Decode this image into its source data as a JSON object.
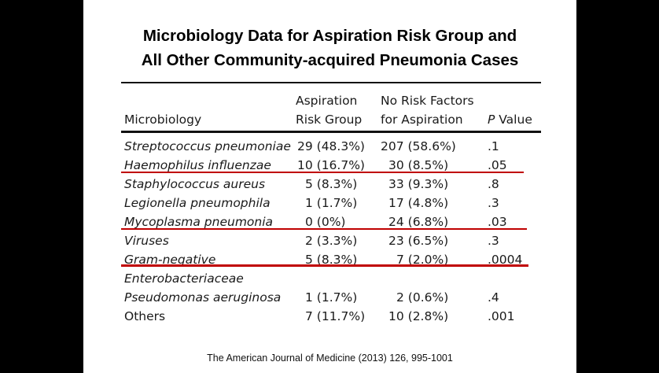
{
  "title_line1": "Microbiology Data for Aspiration Risk Group and",
  "title_line2": "All Other Community-acquired Pneumonia Cases",
  "headers": {
    "col1": "Microbiology",
    "col2_line1": "Aspiration",
    "col2_line2": "Risk Group",
    "col3_line1": "No Risk Factors",
    "col3_line2": "for Aspiration",
    "col4_italic": "P",
    "col4_rest": " Value"
  },
  "rows": [
    {
      "organism": "Streptococcus pneumoniae",
      "aspiration": "29 (48.3%)",
      "no_risk": "207 (58.6%)",
      "p": ".1"
    },
    {
      "organism": "Haemophilus influenzae",
      "aspiration": "10 (16.7%)",
      "no_risk": "30 (8.5%)",
      "p": ".05"
    },
    {
      "organism": "Staphylococcus aureus",
      "aspiration": "5 (8.3%)",
      "no_risk": "33 (9.3%)",
      "p": ".8"
    },
    {
      "organism": "Legionella pneumophila",
      "aspiration": "1 (1.7%)",
      "no_risk": "17 (4.8%)",
      "p": ".3"
    },
    {
      "organism": "Mycoplasma pneumonia",
      "aspiration": "0 (0%)",
      "no_risk": "24 (6.8%)",
      "p": ".03"
    },
    {
      "organism": "Viruses",
      "aspiration": "2 (3.3%)",
      "no_risk": "23 (6.5%)",
      "p": ".3"
    },
    {
      "organism": "Gram-negative",
      "aspiration": "5 (8.3%)",
      "no_risk": "7 (2.0%)",
      "p": ".0004"
    },
    {
      "organism": "Enterobacteriaceae",
      "aspiration": "",
      "no_risk": "",
      "p": ""
    },
    {
      "organism": "Pseudomonas aeruginosa",
      "aspiration": "1 (1.7%)",
      "no_risk": "2 (0.6%)",
      "p": ".4"
    },
    {
      "organism": "Others",
      "aspiration": "7 (11.7%)",
      "no_risk": "10 (2.8%)",
      "p": ".001"
    }
  ],
  "source": "The American Journal of Medicine (2013) 126, 995-1001",
  "colors": {
    "highlight_line": "#c00000",
    "background": "#000000",
    "slide": "#ffffff"
  }
}
